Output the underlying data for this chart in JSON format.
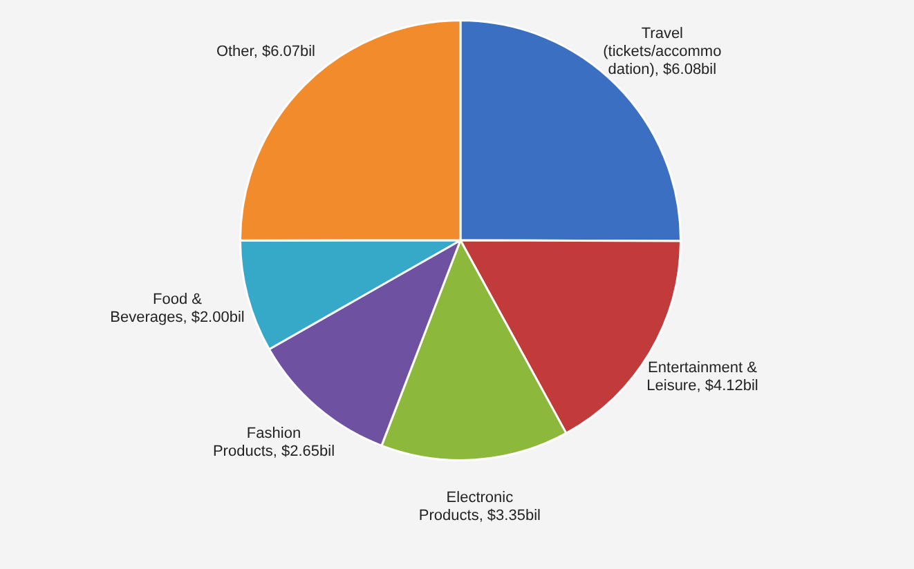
{
  "chart_data": {
    "type": "pie",
    "categories": [
      "Travel (tickets/accommodation)",
      "Entertainment & Leisure",
      "Electronic Products",
      "Fashion Products",
      "Food & Beverages",
      "Other"
    ],
    "values": [
      6.08,
      4.12,
      3.35,
      2.65,
      2.0,
      6.07
    ],
    "value_labels": [
      "$6.08bil",
      "$4.12bil",
      "$3.35bil",
      "$2.65bil",
      "$2.00bil",
      "$6.07bil"
    ],
    "colors": [
      "#3b6fc1",
      "#c13b3b",
      "#8cb83c",
      "#6f51a1",
      "#36a8c8",
      "#f28b2b"
    ],
    "legend": false
  }
}
